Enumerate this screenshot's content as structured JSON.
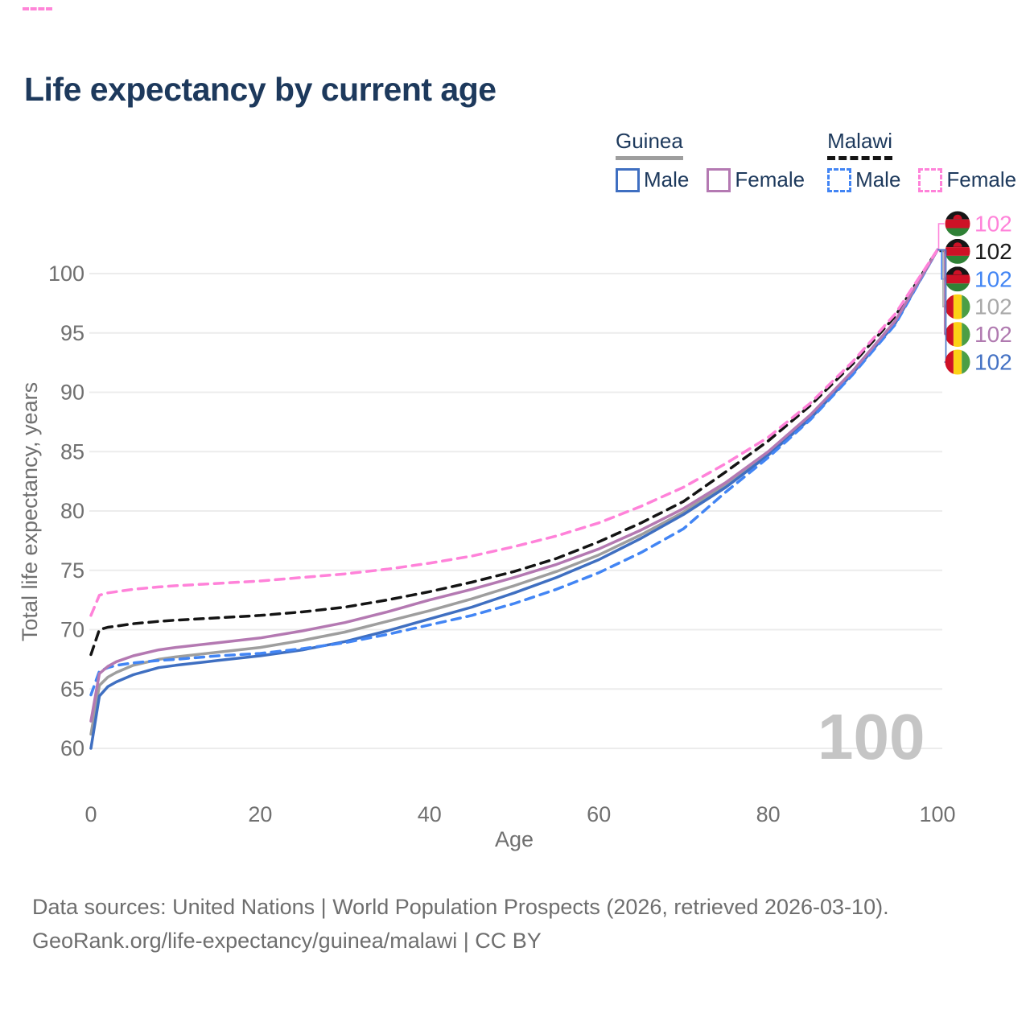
{
  "title": {
    "text": "Life expectancy by current age",
    "color": "#1d395c"
  },
  "stray_artifact": {
    "color": "#ff85d8",
    "style": "dashed-segment"
  },
  "legend": {
    "text_color": "#1d395c",
    "groups": [
      {
        "id": "guinea",
        "label": "Guinea",
        "line_style": "solid",
        "underline_color": "#9e9e9e",
        "items": [
          {
            "label": "Male",
            "color": "#3f6fc1",
            "dashed": false
          },
          {
            "label": "Female",
            "color": "#b479b2",
            "dashed": false
          }
        ]
      },
      {
        "id": "malawi",
        "label": "Malawi",
        "line_style": "dashed",
        "underline_color": "#141414",
        "items": [
          {
            "label": "Male",
            "color": "#4285f4",
            "dashed": true
          },
          {
            "label": "Female",
            "color": "#ff82d9",
            "dashed": true
          }
        ]
      }
    ]
  },
  "watermark": {
    "text": "100",
    "color": "#c5c5c5",
    "meaning": "current age frame"
  },
  "chart_data": {
    "type": "line",
    "title": "Life expectancy by current age",
    "xlabel": "Age",
    "ylabel": "Total life expectancy, years",
    "xlim": [
      0,
      100
    ],
    "ylim": [
      58.5,
      103.5
    ],
    "x_ticks": [
      0,
      20,
      40,
      60,
      80,
      100
    ],
    "y_ticks": [
      60,
      65,
      70,
      75,
      80,
      85,
      90,
      95,
      100
    ],
    "grid": "horizontal-only",
    "grid_color": "#ececec",
    "axis_text_color": "#707070",
    "legend_position": "top-right",
    "ages": [
      0,
      1,
      2,
      3,
      5,
      8,
      10,
      15,
      20,
      25,
      30,
      35,
      40,
      45,
      50,
      55,
      60,
      65,
      70,
      75,
      80,
      85,
      90,
      95,
      100
    ],
    "series": [
      {
        "id": "guinea-total",
        "name": "Guinea Total",
        "color": "#9e9e9e",
        "dashed": false,
        "end_value": 102,
        "values": [
          61.2,
          65.3,
          66.0,
          66.4,
          67.0,
          67.5,
          67.7,
          68.1,
          68.5,
          69.1,
          69.8,
          70.7,
          71.6,
          72.6,
          73.7,
          74.9,
          76.3,
          78.0,
          79.9,
          82.2,
          84.8,
          87.9,
          91.7,
          95.9,
          102
        ]
      },
      {
        "id": "guinea-male",
        "name": "Guinea Male",
        "color": "#3f6fc1",
        "dashed": false,
        "end_value": 102,
        "values": [
          60.0,
          64.4,
          65.2,
          65.6,
          66.2,
          66.8,
          67.0,
          67.4,
          67.8,
          68.3,
          69.0,
          69.9,
          70.9,
          71.9,
          73.1,
          74.4,
          75.9,
          77.7,
          79.7,
          82.0,
          84.7,
          87.8,
          91.6,
          95.8,
          102
        ]
      },
      {
        "id": "malawi-male",
        "name": "Malawi Male",
        "color": "#4285f4",
        "dashed": true,
        "end_value": 102,
        "values": [
          64.5,
          66.5,
          66.8,
          67.0,
          67.2,
          67.4,
          67.5,
          67.8,
          68.0,
          68.4,
          68.9,
          69.6,
          70.4,
          71.2,
          72.2,
          73.4,
          74.8,
          76.5,
          78.5,
          81.6,
          84.5,
          87.7,
          91.5,
          95.7,
          102
        ]
      },
      {
        "id": "malawi-total",
        "name": "Malawi Total",
        "color": "#141414",
        "dashed": true,
        "end_value": 102,
        "values": [
          67.9,
          70.0,
          70.2,
          70.3,
          70.5,
          70.7,
          70.8,
          71.0,
          71.2,
          71.5,
          71.9,
          72.5,
          73.2,
          74.0,
          74.9,
          76.0,
          77.4,
          79.0,
          80.8,
          83.3,
          85.9,
          88.9,
          92.4,
          96.4,
          102
        ]
      },
      {
        "id": "guinea-female",
        "name": "Guinea Female",
        "color": "#b479b2",
        "dashed": false,
        "end_value": 102,
        "values": [
          62.3,
          66.3,
          66.9,
          67.3,
          67.8,
          68.3,
          68.5,
          68.9,
          69.3,
          69.9,
          70.6,
          71.5,
          72.5,
          73.4,
          74.4,
          75.5,
          76.8,
          78.4,
          80.2,
          82.4,
          85.0,
          88.1,
          91.8,
          96.0,
          102
        ]
      },
      {
        "id": "malawi-female",
        "name": "Malawi Female",
        "color": "#ff82d9",
        "dashed": true,
        "end_value": 102,
        "values": [
          71.2,
          72.9,
          73.1,
          73.2,
          73.4,
          73.6,
          73.7,
          73.9,
          74.1,
          74.4,
          74.7,
          75.1,
          75.6,
          76.2,
          77.0,
          77.9,
          79.0,
          80.4,
          82.0,
          84.0,
          86.2,
          89.1,
          92.6,
          96.6,
          102
        ]
      }
    ],
    "end_labels": [
      {
        "flag": "malawi",
        "value": "102",
        "color": "#ff82d9",
        "series": "malawi-female"
      },
      {
        "flag": "malawi",
        "value": "102",
        "color": "#1a1a1a",
        "series": "malawi-total"
      },
      {
        "flag": "malawi",
        "value": "102",
        "color": "#4285f4",
        "series": "malawi-male"
      },
      {
        "flag": "guinea",
        "value": "102",
        "color": "#a9a9a9",
        "series": "guinea-total"
      },
      {
        "flag": "guinea",
        "value": "102",
        "color": "#b07ab0",
        "series": "guinea-female"
      },
      {
        "flag": "guinea",
        "value": "102",
        "color": "#4472c4",
        "series": "guinea-male"
      }
    ],
    "flag_colors": {
      "malawi": {
        "black": "#161616",
        "red": "#ce1126",
        "green": "#2f8136"
      },
      "guinea": {
        "red": "#ce1126",
        "yellow": "#fcd116",
        "green": "#4c9e45"
      }
    }
  },
  "footer": {
    "line1": "Data sources: United Nations | World Population Prospects (2026, retrieved 2026-03-10).",
    "line2": "GeoRank.org/life-expectancy/guinea/malawi | CC BY",
    "color": "#6e6e6e"
  }
}
